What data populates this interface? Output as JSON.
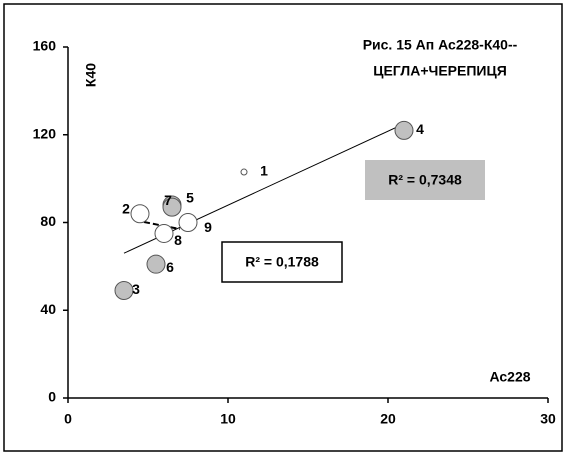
{
  "chart_data": {
    "type": "scatter",
    "title": [
      "Рис. 15  Ап Ас228-К40--",
      "ЦЕГЛА+ЧЕРЕПИЦЯ"
    ],
    "x_label": "Ас228",
    "y_label": "К40",
    "xlim": [
      0,
      30
    ],
    "xticks": [
      0,
      10,
      20,
      30
    ],
    "ylim": [
      0,
      160
    ],
    "yticks": [
      0,
      40,
      80,
      120,
      160
    ],
    "x": [
      11,
      4.5,
      3.5,
      21,
      6.5,
      5.5,
      6.5,
      6,
      7.5
    ],
    "values": [
      103,
      84,
      49,
      122,
      88,
      61,
      87,
      75,
      80
    ],
    "point_labels": [
      "1",
      "2",
      "3",
      "4",
      "5",
      "6",
      "7",
      "8",
      "9"
    ],
    "colors": [
      "#ffffff",
      "#ffffff",
      "#c0c0c0",
      "#c0c0c0",
      "#c0c0c0",
      "#c0c0c0",
      "#c0c0c0",
      "#ffffff",
      "#ffffff"
    ],
    "trendlines": [
      {
        "x": [
          3.5,
          21
        ],
        "y": [
          66,
          125
        ],
        "label": "R² = 0,7348",
        "box": "#c0c0c0"
      },
      {
        "x": [
          4.2,
          7
        ],
        "y": [
          81,
          77
        ],
        "label": "R² = 0,1788",
        "box": "#ffffff"
      }
    ]
  }
}
